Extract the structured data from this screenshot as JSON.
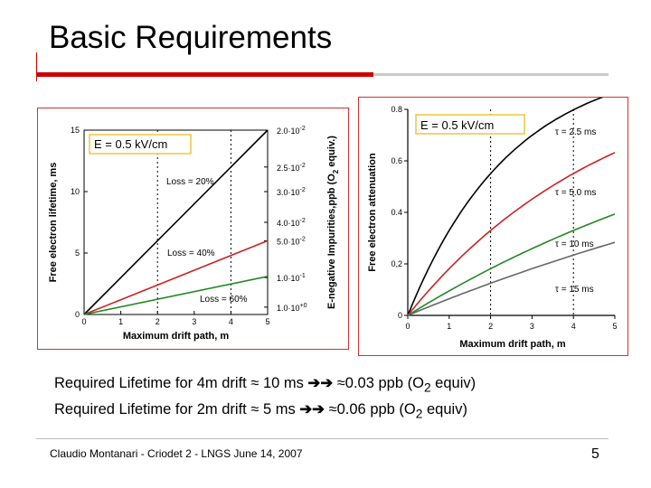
{
  "slide": {
    "title": "Basic Requirements",
    "lines": [
      {
        "prefix": "Required Lifetime for 4m drift ≈ 10 ms ",
        "arrow": "➔➔",
        "value": " ≈0.03 ppb (O",
        "sub": "2",
        "suffix": " equiv)"
      },
      {
        "prefix": "Required Lifetime for 2m drift ≈ 5 ms ",
        "arrow": "➔➔",
        "value": " ≈0.06 ppb (O",
        "sub": "2",
        "suffix": " equiv)"
      }
    ],
    "footer": {
      "author": "Claudio Montanari - Criodet 2 - LNGS June 14, 2007",
      "page": "5"
    },
    "colors": {
      "accent": "#cc0000",
      "rule_gray": "#c9c9c9",
      "panel_border": "#cc3333"
    }
  },
  "chart_data": [
    {
      "type": "line",
      "box_label": "E = 0.5 kV/cm",
      "xlabel": "Maximum drift path, m",
      "ylabel": "Free electron lifetime, ms",
      "y2label": "E-negative Impurities,ppb (O2 equiv.)",
      "y2label_main": "E-negative Impurities,ppb (O",
      "y2label_sub": "2",
      "y2label_end": " equiv.)",
      "xlim": [
        0,
        5
      ],
      "ylim": [
        0,
        15
      ],
      "xticks": [
        "0",
        "1",
        "2",
        "3",
        "4",
        "5"
      ],
      "yticks": [
        "0",
        "5",
        "10",
        "15"
      ],
      "y2ticks": [
        {
          "value": 15,
          "mant": "2.0·10",
          "exp": "-2"
        },
        {
          "value": 12,
          "mant": "2.5·10",
          "exp": "-2"
        },
        {
          "value": 10,
          "mant": "3.0·10",
          "exp": "-2"
        },
        {
          "value": 7.5,
          "mant": "4.0·10",
          "exp": "-2"
        },
        {
          "value": 6,
          "mant": "5.0·10",
          "exp": "-2"
        },
        {
          "value": 3,
          "mant": "1.0·10",
          "exp": "-1"
        },
        {
          "value": 0.6,
          "mant": "1.0·10",
          "exp": "+0"
        }
      ],
      "vlines": [
        2,
        4
      ],
      "series": [
        {
          "name": "Loss = 20%",
          "color": "#000000",
          "x": [
            0,
            5
          ],
          "y": [
            0,
            15
          ]
        },
        {
          "name": "Loss = 40%",
          "color": "#cc2222",
          "x": [
            0,
            5
          ],
          "y": [
            0,
            6
          ]
        },
        {
          "name": "Loss = 60%",
          "color": "#228822",
          "x": [
            0,
            5
          ],
          "y": [
            0,
            3.1
          ]
        }
      ]
    },
    {
      "type": "line",
      "box_label": "E = 0.5 kV/cm",
      "xlabel": "Maximum drift path, m",
      "ylabel": "Free electron attenuation",
      "xlim": [
        0,
        5
      ],
      "ylim": [
        0,
        0.8
      ],
      "xticks": [
        "0",
        "1",
        "2",
        "3",
        "4",
        "5"
      ],
      "yticks": [
        "0",
        "0,2",
        "0.4",
        "0.6",
        "0.8"
      ],
      "vlines": [
        2,
        4
      ],
      "series": [
        {
          "name": "τ = 2.5 ms",
          "color": "#000000",
          "tau": 2.5
        },
        {
          "name": "τ = 5.0 ms",
          "color": "#cc2222",
          "tau": 5.0
        },
        {
          "name": "τ = 10 ms",
          "color": "#228822",
          "tau": 10
        },
        {
          "name": "τ = 15 ms",
          "color": "#666666",
          "tau": 15
        }
      ]
    }
  ]
}
